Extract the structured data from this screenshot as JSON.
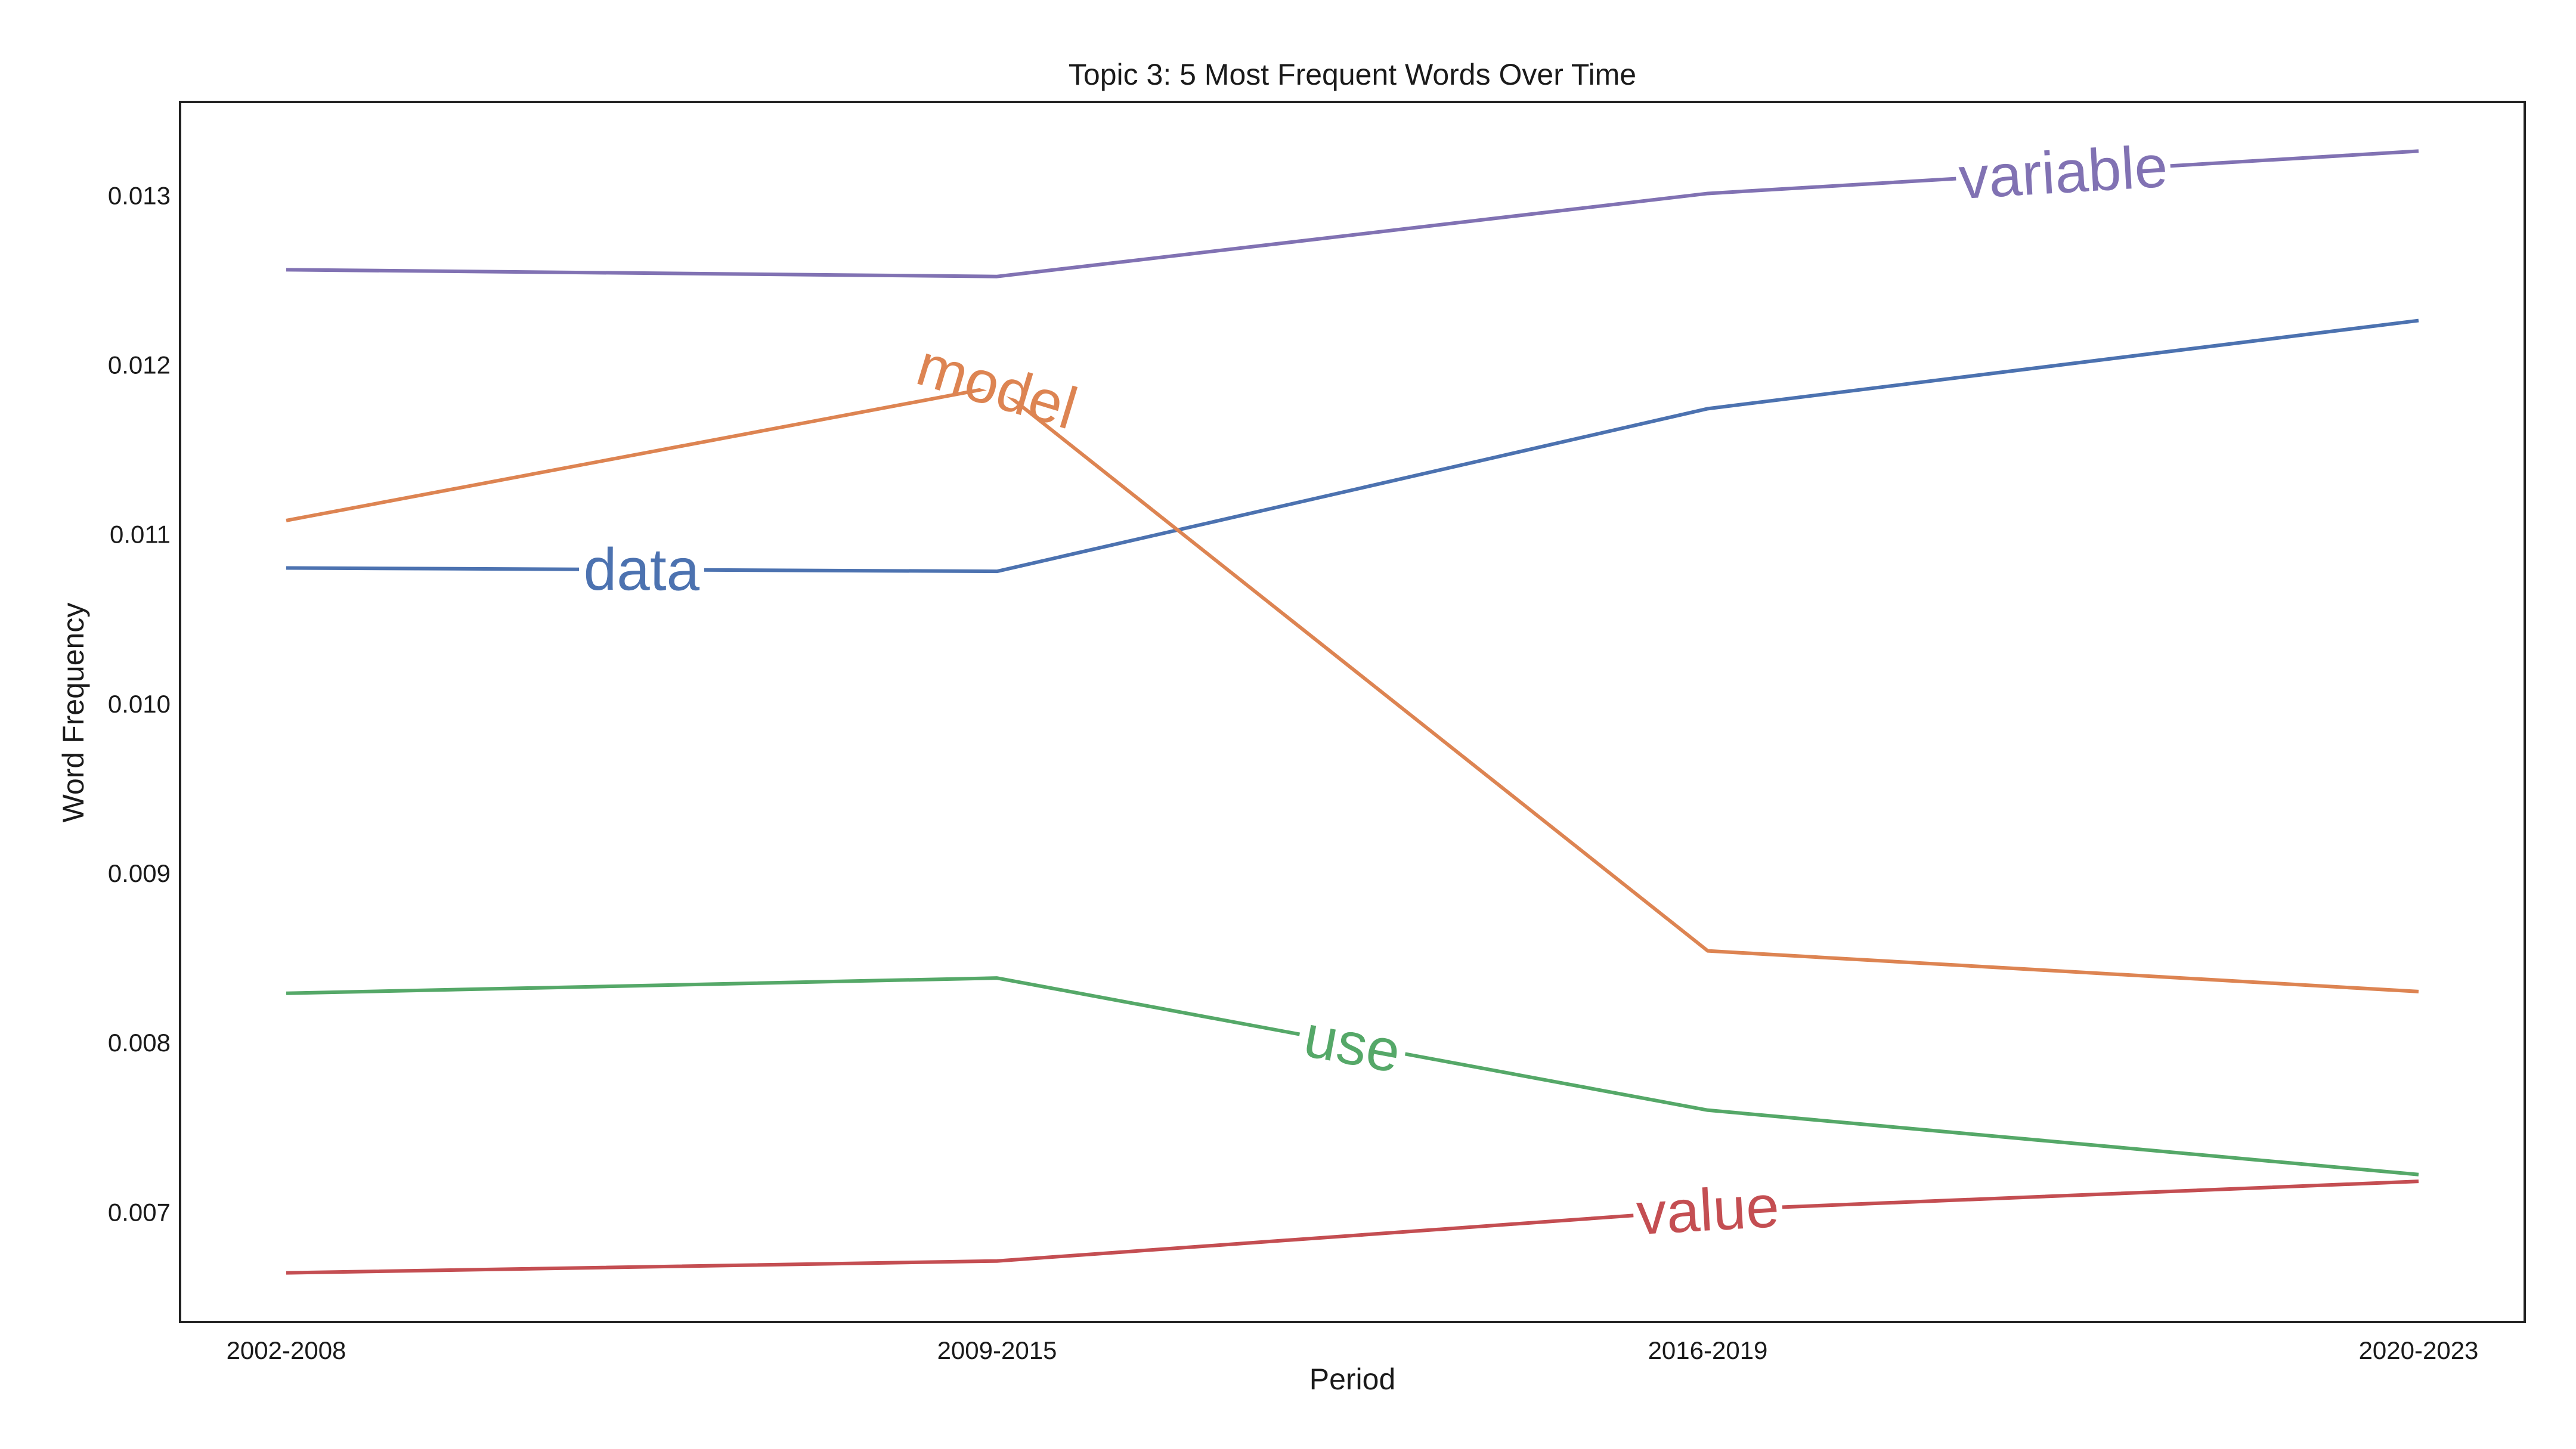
{
  "chart_data": {
    "type": "line",
    "title": "Topic 3: 5 Most Frequent Words Over Time",
    "xlabel": "Period",
    "ylabel": "Word Frequency",
    "categories": [
      "2002-2008",
      "2009-2015",
      "2016-2019",
      "2020-2023"
    ],
    "ylim": [
      0.00635,
      0.01355
    ],
    "yticks": [
      0.007,
      0.008,
      0.009,
      0.01,
      0.011,
      0.012,
      0.013
    ],
    "ytick_labels": [
      "0.007",
      "0.008",
      "0.009",
      "0.010",
      "0.011",
      "0.012",
      "0.013"
    ],
    "grid": false,
    "series": [
      {
        "name": "data",
        "color": "#4c72b0",
        "values": [
          0.0108,
          0.01078,
          0.01174,
          0.01226
        ],
        "label_at": 0.5
      },
      {
        "name": "model",
        "color": "#dd8452",
        "values": [
          0.01108,
          0.01187,
          0.00854,
          0.0083
        ],
        "label_at": 1.0
      },
      {
        "name": "use",
        "color": "#55a868",
        "values": [
          0.00829,
          0.00838,
          0.0076,
          0.00722
        ],
        "label_at": 1.5
      },
      {
        "name": "value",
        "color": "#c44e52",
        "values": [
          0.00664,
          0.00671,
          0.00701,
          0.00718
        ],
        "label_at": 2.0
      },
      {
        "name": "variable",
        "color": "#8172b3",
        "values": [
          0.01256,
          0.01252,
          0.01301,
          0.01326
        ],
        "label_at": 2.5
      }
    ]
  }
}
